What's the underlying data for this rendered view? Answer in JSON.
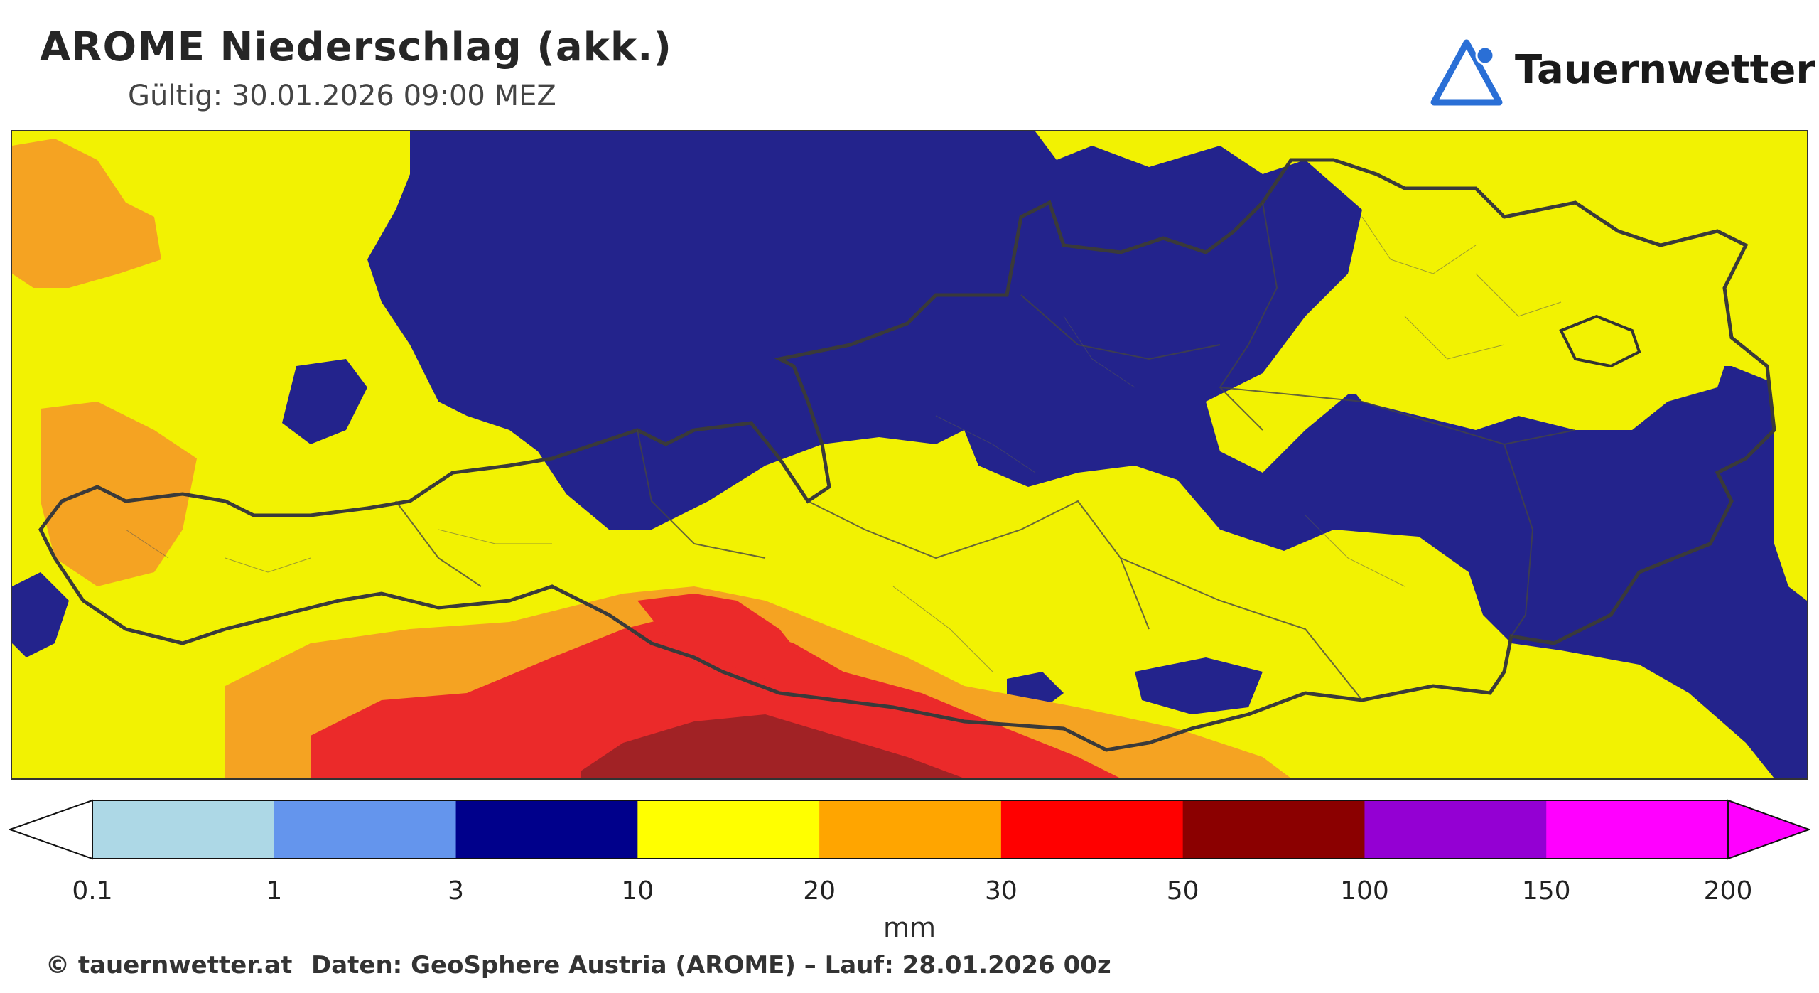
{
  "header": {
    "title": "AROME Niederschlag (akk.)",
    "subtitle": "Gültig: 30.01.2026 09:00 MEZ"
  },
  "brand": {
    "name": "Tauernwetter",
    "logo_icon": "triangle-mountain-icon",
    "logo_color": "#2a6fd6"
  },
  "map": {
    "region": "Austria",
    "legend_colors": {
      "0.1-1": "#add8e6",
      "1-3": "#6495ed",
      "3-10": "#00008b",
      "10-20": "#ffff00",
      "20-30": "#ffa500",
      "30-50": "#ff0000",
      "50-100": "#8b0000",
      "100-150": "#9400d3",
      "150-200": "#ff00ff"
    },
    "rendered_colors": {
      "navy": "#23238c",
      "yellow": "#f2f202",
      "orange": "#f5a322",
      "red": "#eb2a2a",
      "darkred": "#a12225"
    }
  },
  "colorbar": {
    "ticks": [
      "0.1",
      "1",
      "3",
      "10",
      "20",
      "30",
      "50",
      "100",
      "150",
      "200"
    ],
    "colors": [
      "#add8e6",
      "#6495ed",
      "#00008b",
      "#ffff00",
      "#ffa500",
      "#ff0000",
      "#8b0000",
      "#9400d3",
      "#ff00ff"
    ],
    "under_color": "#ffffff",
    "over_color": "#ff00ff",
    "unit": "mm"
  },
  "footer": {
    "copyright": "© tauernwetter.at",
    "source": "Daten: GeoSphere Austria (AROME) – Lauf: 28.01.2026 00z"
  }
}
